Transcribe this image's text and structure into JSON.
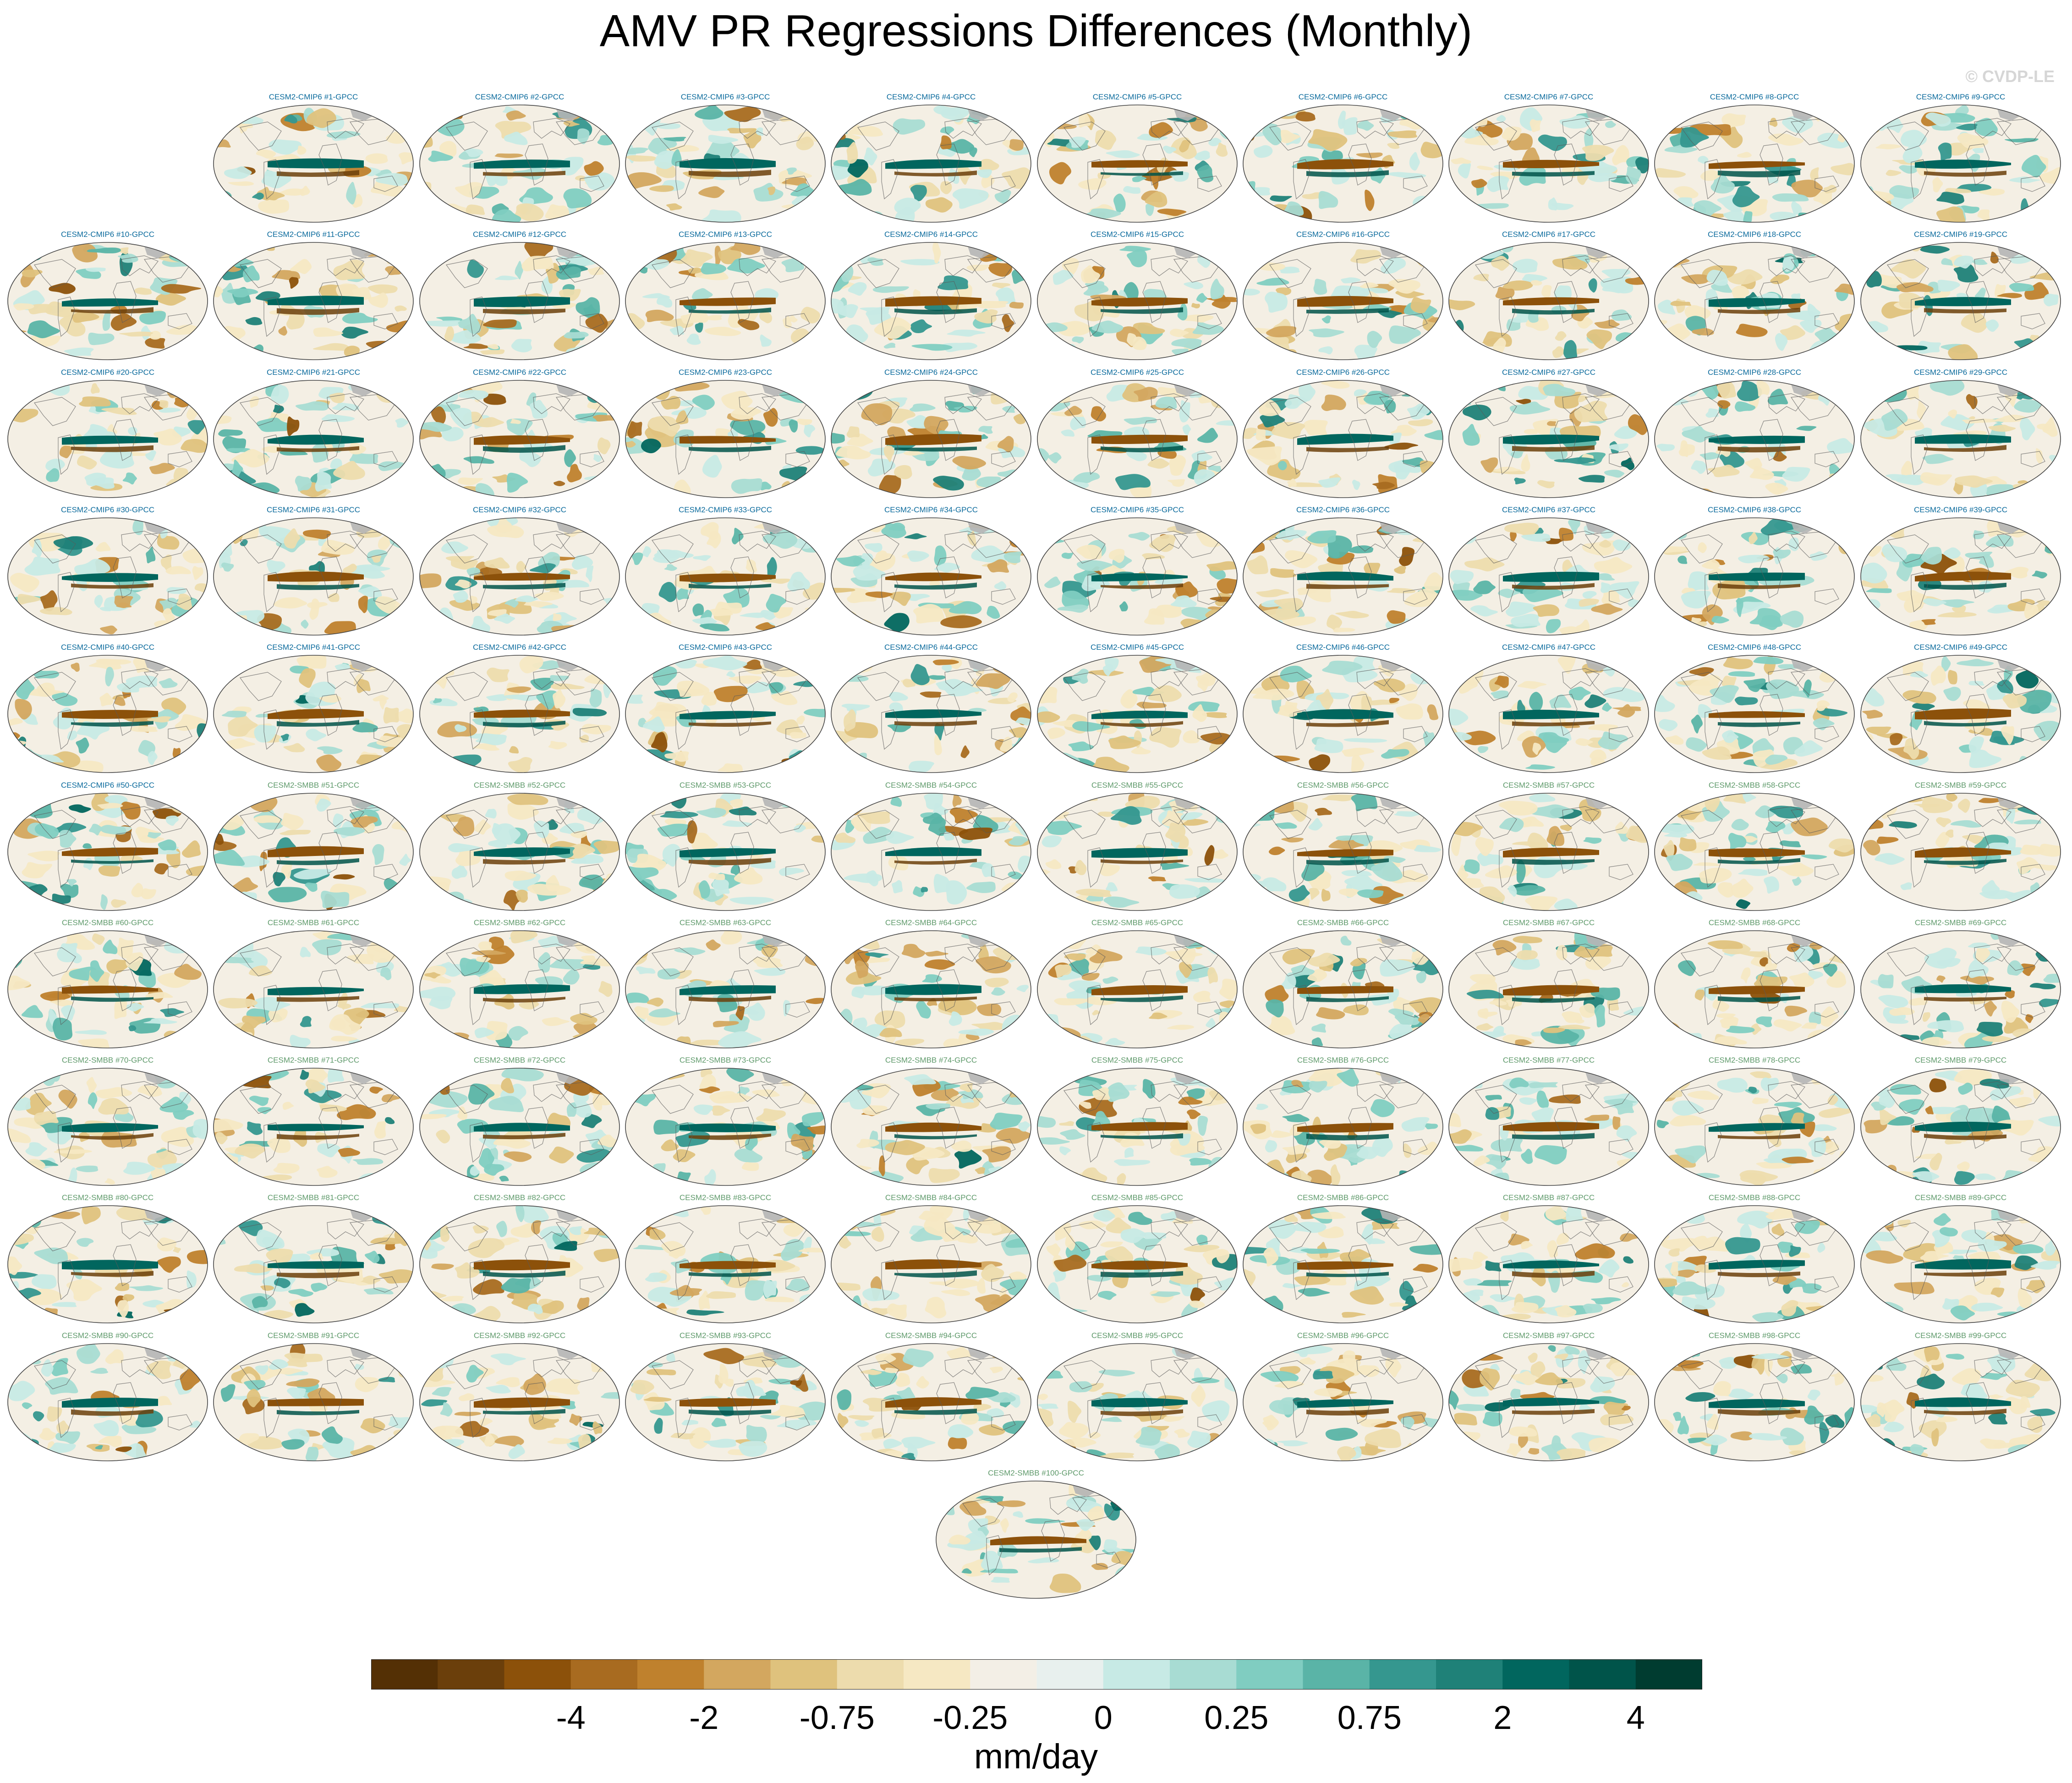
{
  "chart_data": {
    "type": "heatmap",
    "title": "AMV PR Regressions Differences (Monthly)",
    "watermark": "© CVDP-LE",
    "projection": "Robinson (global map panels)",
    "panels": [
      {
        "label": "CESM2-CMIP6 #1-GPCC",
        "group": "CMIP6"
      },
      {
        "label": "CESM2-CMIP6 #2-GPCC",
        "group": "CMIP6"
      },
      {
        "label": "CESM2-CMIP6 #3-GPCC",
        "group": "CMIP6"
      },
      {
        "label": "CESM2-CMIP6 #4-GPCC",
        "group": "CMIP6"
      },
      {
        "label": "CESM2-CMIP6 #5-GPCC",
        "group": "CMIP6"
      },
      {
        "label": "CESM2-CMIP6 #6-GPCC",
        "group": "CMIP6"
      },
      {
        "label": "CESM2-CMIP6 #7-GPCC",
        "group": "CMIP6"
      },
      {
        "label": "CESM2-CMIP6 #8-GPCC",
        "group": "CMIP6"
      },
      {
        "label": "CESM2-CMIP6 #9-GPCC",
        "group": "CMIP6"
      },
      {
        "label": "CESM2-CMIP6 #10-GPCC",
        "group": "CMIP6"
      },
      {
        "label": "CESM2-CMIP6 #11-GPCC",
        "group": "CMIP6"
      },
      {
        "label": "CESM2-CMIP6 #12-GPCC",
        "group": "CMIP6"
      },
      {
        "label": "CESM2-CMIP6 #13-GPCC",
        "group": "CMIP6"
      },
      {
        "label": "CESM2-CMIP6 #14-GPCC",
        "group": "CMIP6"
      },
      {
        "label": "CESM2-CMIP6 #15-GPCC",
        "group": "CMIP6"
      },
      {
        "label": "CESM2-CMIP6 #16-GPCC",
        "group": "CMIP6"
      },
      {
        "label": "CESM2-CMIP6 #17-GPCC",
        "group": "CMIP6"
      },
      {
        "label": "CESM2-CMIP6 #18-GPCC",
        "group": "CMIP6"
      },
      {
        "label": "CESM2-CMIP6 #19-GPCC",
        "group": "CMIP6"
      },
      {
        "label": "CESM2-CMIP6 #20-GPCC",
        "group": "CMIP6"
      },
      {
        "label": "CESM2-CMIP6 #21-GPCC",
        "group": "CMIP6"
      },
      {
        "label": "CESM2-CMIP6 #22-GPCC",
        "group": "CMIP6"
      },
      {
        "label": "CESM2-CMIP6 #23-GPCC",
        "group": "CMIP6"
      },
      {
        "label": "CESM2-CMIP6 #24-GPCC",
        "group": "CMIP6"
      },
      {
        "label": "CESM2-CMIP6 #25-GPCC",
        "group": "CMIP6"
      },
      {
        "label": "CESM2-CMIP6 #26-GPCC",
        "group": "CMIP6"
      },
      {
        "label": "CESM2-CMIP6 #27-GPCC",
        "group": "CMIP6"
      },
      {
        "label": "CESM2-CMIP6 #28-GPCC",
        "group": "CMIP6"
      },
      {
        "label": "CESM2-CMIP6 #29-GPCC",
        "group": "CMIP6"
      },
      {
        "label": "CESM2-CMIP6 #30-GPCC",
        "group": "CMIP6"
      },
      {
        "label": "CESM2-CMIP6 #31-GPCC",
        "group": "CMIP6"
      },
      {
        "label": "CESM2-CMIP6 #32-GPCC",
        "group": "CMIP6"
      },
      {
        "label": "CESM2-CMIP6 #33-GPCC",
        "group": "CMIP6"
      },
      {
        "label": "CESM2-CMIP6 #34-GPCC",
        "group": "CMIP6"
      },
      {
        "label": "CESM2-CMIP6 #35-GPCC",
        "group": "CMIP6"
      },
      {
        "label": "CESM2-CMIP6 #36-GPCC",
        "group": "CMIP6"
      },
      {
        "label": "CESM2-CMIP6 #37-GPCC",
        "group": "CMIP6"
      },
      {
        "label": "CESM2-CMIP6 #38-GPCC",
        "group": "CMIP6"
      },
      {
        "label": "CESM2-CMIP6 #39-GPCC",
        "group": "CMIP6"
      },
      {
        "label": "CESM2-CMIP6 #40-GPCC",
        "group": "CMIP6"
      },
      {
        "label": "CESM2-CMIP6 #41-GPCC",
        "group": "CMIP6"
      },
      {
        "label": "CESM2-CMIP6 #42-GPCC",
        "group": "CMIP6"
      },
      {
        "label": "CESM2-CMIP6 #43-GPCC",
        "group": "CMIP6"
      },
      {
        "label": "CESM2-CMIP6 #44-GPCC",
        "group": "CMIP6"
      },
      {
        "label": "CESM2-CMIP6 #45-GPCC",
        "group": "CMIP6"
      },
      {
        "label": "CESM2-CMIP6 #46-GPCC",
        "group": "CMIP6"
      },
      {
        "label": "CESM2-CMIP6 #47-GPCC",
        "group": "CMIP6"
      },
      {
        "label": "CESM2-CMIP6 #48-GPCC",
        "group": "CMIP6"
      },
      {
        "label": "CESM2-CMIP6 #49-GPCC",
        "group": "CMIP6"
      },
      {
        "label": "CESM2-CMIP6 #50-GPCC",
        "group": "CMIP6"
      },
      {
        "label": "CESM2-SMBB #51-GPCC",
        "group": "SMBB"
      },
      {
        "label": "CESM2-SMBB #52-GPCC",
        "group": "SMBB"
      },
      {
        "label": "CESM2-SMBB #53-GPCC",
        "group": "SMBB"
      },
      {
        "label": "CESM2-SMBB #54-GPCC",
        "group": "SMBB"
      },
      {
        "label": "CESM2-SMBB #55-GPCC",
        "group": "SMBB"
      },
      {
        "label": "CESM2-SMBB #56-GPCC",
        "group": "SMBB"
      },
      {
        "label": "CESM2-SMBB #57-GPCC",
        "group": "SMBB"
      },
      {
        "label": "CESM2-SMBB #58-GPCC",
        "group": "SMBB"
      },
      {
        "label": "CESM2-SMBB #59-GPCC",
        "group": "SMBB"
      },
      {
        "label": "CESM2-SMBB #60-GPCC",
        "group": "SMBB"
      },
      {
        "label": "CESM2-SMBB #61-GPCC",
        "group": "SMBB"
      },
      {
        "label": "CESM2-SMBB #62-GPCC",
        "group": "SMBB"
      },
      {
        "label": "CESM2-SMBB #63-GPCC",
        "group": "SMBB"
      },
      {
        "label": "CESM2-SMBB #64-GPCC",
        "group": "SMBB"
      },
      {
        "label": "CESM2-SMBB #65-GPCC",
        "group": "SMBB"
      },
      {
        "label": "CESM2-SMBB #66-GPCC",
        "group": "SMBB"
      },
      {
        "label": "CESM2-SMBB #67-GPCC",
        "group": "SMBB"
      },
      {
        "label": "CESM2-SMBB #68-GPCC",
        "group": "SMBB"
      },
      {
        "label": "CESM2-SMBB #69-GPCC",
        "group": "SMBB"
      },
      {
        "label": "CESM2-SMBB #70-GPCC",
        "group": "SMBB"
      },
      {
        "label": "CESM2-SMBB #71-GPCC",
        "group": "SMBB"
      },
      {
        "label": "CESM2-SMBB #72-GPCC",
        "group": "SMBB"
      },
      {
        "label": "CESM2-SMBB #73-GPCC",
        "group": "SMBB"
      },
      {
        "label": "CESM2-SMBB #74-GPCC",
        "group": "SMBB"
      },
      {
        "label": "CESM2-SMBB #75-GPCC",
        "group": "SMBB"
      },
      {
        "label": "CESM2-SMBB #76-GPCC",
        "group": "SMBB"
      },
      {
        "label": "CESM2-SMBB #77-GPCC",
        "group": "SMBB"
      },
      {
        "label": "CESM2-SMBB #78-GPCC",
        "group": "SMBB"
      },
      {
        "label": "CESM2-SMBB #79-GPCC",
        "group": "SMBB"
      },
      {
        "label": "CESM2-SMBB #80-GPCC",
        "group": "SMBB"
      },
      {
        "label": "CESM2-SMBB #81-GPCC",
        "group": "SMBB"
      },
      {
        "label": "CESM2-SMBB #82-GPCC",
        "group": "SMBB"
      },
      {
        "label": "CESM2-SMBB #83-GPCC",
        "group": "SMBB"
      },
      {
        "label": "CESM2-SMBB #84-GPCC",
        "group": "SMBB"
      },
      {
        "label": "CESM2-SMBB #85-GPCC",
        "group": "SMBB"
      },
      {
        "label": "CESM2-SMBB #86-GPCC",
        "group": "SMBB"
      },
      {
        "label": "CESM2-SMBB #87-GPCC",
        "group": "SMBB"
      },
      {
        "label": "CESM2-SMBB #88-GPCC",
        "group": "SMBB"
      },
      {
        "label": "CESM2-SMBB #89-GPCC",
        "group": "SMBB"
      },
      {
        "label": "CESM2-SMBB #90-GPCC",
        "group": "SMBB"
      },
      {
        "label": "CESM2-SMBB #91-GPCC",
        "group": "SMBB"
      },
      {
        "label": "CESM2-SMBB #92-GPCC",
        "group": "SMBB"
      },
      {
        "label": "CESM2-SMBB #93-GPCC",
        "group": "SMBB"
      },
      {
        "label": "CESM2-SMBB #94-GPCC",
        "group": "SMBB"
      },
      {
        "label": "CESM2-SMBB #95-GPCC",
        "group": "SMBB"
      },
      {
        "label": "CESM2-SMBB #96-GPCC",
        "group": "SMBB"
      },
      {
        "label": "CESM2-SMBB #97-GPCC",
        "group": "SMBB"
      },
      {
        "label": "CESM2-SMBB #98-GPCC",
        "group": "SMBB"
      },
      {
        "label": "CESM2-SMBB #99-GPCC",
        "group": "SMBB"
      },
      {
        "label": "CESM2-SMBB #100-GPCC",
        "group": "SMBB"
      }
    ],
    "colorbar": {
      "units": "mm/day",
      "colors": [
        "#543005",
        "#6b3f0b",
        "#8c510a",
        "#a86b20",
        "#bf812d",
        "#d3a75f",
        "#dfc27d",
        "#eddcad",
        "#f6e8c3",
        "#f3efe6",
        "#e8f0ee",
        "#c7eae5",
        "#a8dcd3",
        "#80cdc1",
        "#5ab4a7",
        "#35978f",
        "#1f8178",
        "#01665e",
        "#00544a",
        "#003c30"
      ],
      "tick_labels": [
        {
          "label": "-4",
          "boundary": 3
        },
        {
          "label": "-2",
          "boundary": 5
        },
        {
          "label": "-0.75",
          "boundary": 7
        },
        {
          "label": "-0.25",
          "boundary": 9
        },
        {
          "label": "0",
          "boundary": 11
        },
        {
          "label": "0.25",
          "boundary": 13
        },
        {
          "label": "0.75",
          "boundary": 15
        },
        {
          "label": "2",
          "boundary": 17
        },
        {
          "label": "4",
          "boundary": 19
        }
      ]
    }
  }
}
